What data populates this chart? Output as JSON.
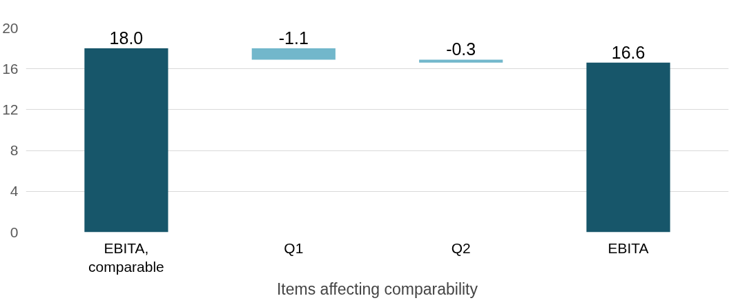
{
  "chart_data": {
    "type": "bar",
    "xlabel": "Items affecting comparability",
    "categories": [
      "EBITA, comparable",
      "Q1",
      "Q2",
      "EBITA"
    ],
    "values": [
      18.0,
      -1.1,
      -0.3,
      16.6
    ],
    "base": [
      0,
      18.0,
      16.9,
      0
    ],
    "colors": [
      "#17566a",
      "#72b7cb",
      "#72b7cb",
      "#17566a"
    ],
    "value_labels": [
      "18.0",
      "-1.1",
      "-0.3",
      "16.6"
    ],
    "ylim": [
      0,
      20
    ],
    "yticks": [
      0,
      4,
      8,
      12,
      16,
      20
    ],
    "grid": "y"
  }
}
